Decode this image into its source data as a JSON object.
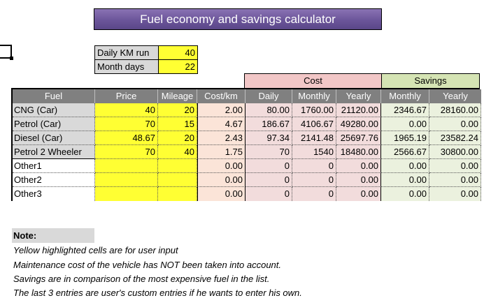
{
  "title": "Fuel economy and savings calculator",
  "inputs": {
    "daily_km_label": "Daily KM run",
    "daily_km_value": "40",
    "month_days_label": "Month days",
    "month_days_value": "22"
  },
  "groups": {
    "cost": "Cost",
    "savings": "Savings"
  },
  "headers": [
    "Fuel",
    "Price",
    "Mileage",
    "Cost/km",
    "Daily",
    "Monthly",
    "Yearly",
    "Monthly",
    "Yearly"
  ],
  "rows": [
    [
      "CNG (Car)",
      "40",
      "20",
      "2.00",
      "80.00",
      "1760.00",
      "21120.00",
      "2346.67",
      "28160.00"
    ],
    [
      "Petrol (Car)",
      "70",
      "15",
      "4.67",
      "186.67",
      "4106.67",
      "49280.00",
      "0.00",
      "0.00"
    ],
    [
      "Diesel (Car)",
      "48.67",
      "20",
      "2.43",
      "97.34",
      "2141.48",
      "25697.76",
      "1965.19",
      "23582.24"
    ],
    [
      "Petrol 2 Wheeler",
      "70",
      "40",
      "1.75",
      "70",
      "1540",
      "18480.00",
      "2566.67",
      "30800.00"
    ],
    [
      "Other1",
      "",
      "",
      "0.00",
      "0",
      "0",
      "0.00",
      "0.00",
      "0.00"
    ],
    [
      "Other2",
      "",
      "",
      "0.00",
      "0",
      "0",
      "0.00",
      "0.00",
      "0.00"
    ],
    [
      "Other3",
      "",
      "",
      "0.00",
      "0",
      "0",
      "0.00",
      "0.00",
      "0.00"
    ]
  ],
  "notes": {
    "heading": "Note:",
    "lines": [
      "Yellow highlighted cells are for user input",
      "Maintenance cost of the vehicle has NOT been taken into account.",
      "Savings are in comparison of the most expensive fuel in the list.",
      "The last 3 entries are user's custom entries if he wants to enter his own."
    ]
  },
  "colors": {
    "title_bg": "#6b559a",
    "input_yellow": "#ffff33",
    "header_gray": "#808080",
    "cost_pink": "#f2c7c7",
    "savings_green": "#d5e4b4"
  }
}
